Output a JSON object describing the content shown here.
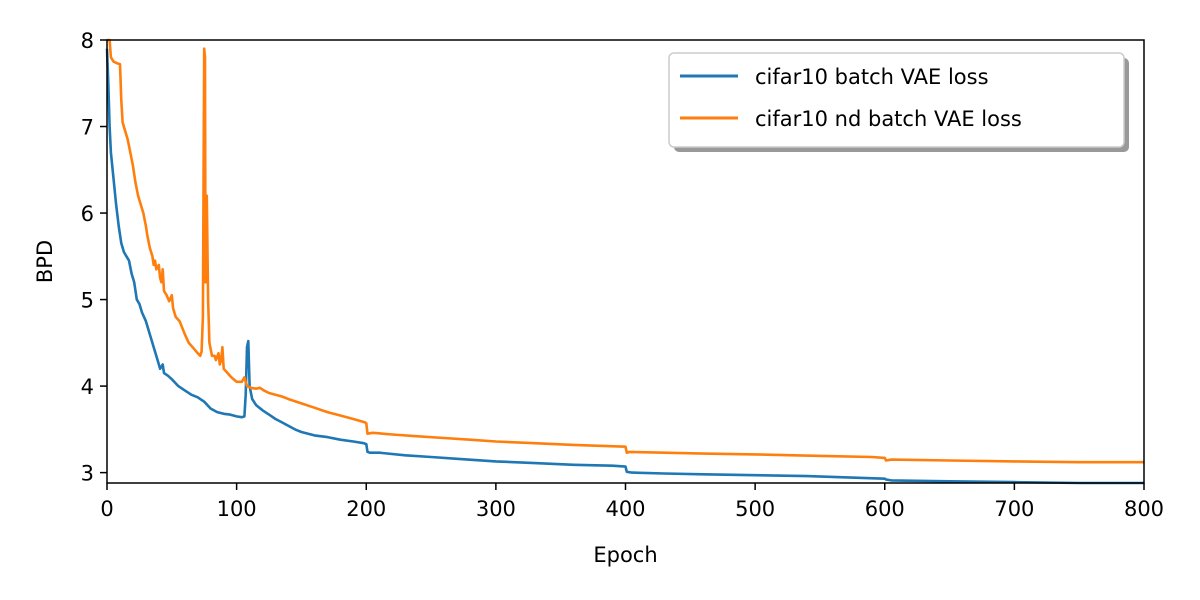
{
  "chart_data": {
    "type": "line",
    "xlabel": "Epoch",
    "ylabel": "BPD",
    "xlim": [
      0,
      800
    ],
    "ylim": [
      2.88,
      8.0
    ],
    "xticks": [
      0,
      100,
      200,
      300,
      400,
      500,
      600,
      700,
      800
    ],
    "yticks": [
      3,
      4,
      5,
      6,
      7,
      8
    ],
    "grid": false,
    "legend_position": "top-right",
    "series": [
      {
        "name": "cifar10 batch VAE loss",
        "color": "#1f77b4",
        "points": [
          [
            0,
            7.9
          ],
          [
            1,
            7.5
          ],
          [
            2,
            7.0
          ],
          [
            3,
            6.7
          ],
          [
            5,
            6.4
          ],
          [
            7,
            6.1
          ],
          [
            9,
            5.85
          ],
          [
            11,
            5.65
          ],
          [
            13,
            5.55
          ],
          [
            15,
            5.5
          ],
          [
            17,
            5.45
          ],
          [
            19,
            5.3
          ],
          [
            21,
            5.2
          ],
          [
            23,
            5.0
          ],
          [
            25,
            4.95
          ],
          [
            27,
            4.85
          ],
          [
            30,
            4.75
          ],
          [
            33,
            4.6
          ],
          [
            36,
            4.45
          ],
          [
            39,
            4.3
          ],
          [
            41,
            4.2
          ],
          [
            43,
            4.25
          ],
          [
            44,
            4.15
          ],
          [
            47,
            4.12
          ],
          [
            50,
            4.08
          ],
          [
            55,
            4.0
          ],
          [
            60,
            3.95
          ],
          [
            65,
            3.9
          ],
          [
            70,
            3.87
          ],
          [
            75,
            3.82
          ],
          [
            80,
            3.74
          ],
          [
            85,
            3.7
          ],
          [
            90,
            3.68
          ],
          [
            95,
            3.67
          ],
          [
            100,
            3.65
          ],
          [
            104,
            3.64
          ],
          [
            106,
            3.65
          ],
          [
            107,
            3.9
          ],
          [
            108,
            4.45
          ],
          [
            109,
            4.52
          ],
          [
            110,
            4.0
          ],
          [
            112,
            3.85
          ],
          [
            115,
            3.78
          ],
          [
            120,
            3.72
          ],
          [
            125,
            3.67
          ],
          [
            130,
            3.62
          ],
          [
            135,
            3.58
          ],
          [
            140,
            3.54
          ],
          [
            145,
            3.5
          ],
          [
            150,
            3.47
          ],
          [
            160,
            3.43
          ],
          [
            170,
            3.41
          ],
          [
            180,
            3.38
          ],
          [
            190,
            3.36
          ],
          [
            198,
            3.34
          ],
          [
            200,
            3.33
          ],
          [
            201,
            3.24
          ],
          [
            203,
            3.23
          ],
          [
            210,
            3.23
          ],
          [
            230,
            3.2
          ],
          [
            250,
            3.18
          ],
          [
            270,
            3.16
          ],
          [
            300,
            3.13
          ],
          [
            330,
            3.11
          ],
          [
            360,
            3.09
          ],
          [
            390,
            3.08
          ],
          [
            400,
            3.07
          ],
          [
            401,
            3.01
          ],
          [
            405,
            3.0
          ],
          [
            430,
            2.99
          ],
          [
            460,
            2.98
          ],
          [
            500,
            2.97
          ],
          [
            540,
            2.96
          ],
          [
            580,
            2.94
          ],
          [
            600,
            2.93
          ],
          [
            601,
            2.92
          ],
          [
            605,
            2.91
          ],
          [
            650,
            2.9
          ],
          [
            700,
            2.89
          ],
          [
            750,
            2.88
          ],
          [
            800,
            2.88
          ]
        ]
      },
      {
        "name": "cifar10 nd batch VAE loss",
        "color": "#ff7f0e",
        "points": [
          [
            0,
            8.0
          ],
          [
            2,
            8.0
          ],
          [
            3,
            7.8
          ],
          [
            5,
            7.75
          ],
          [
            8,
            7.73
          ],
          [
            10,
            7.72
          ],
          [
            11,
            7.3
          ],
          [
            12,
            7.05
          ],
          [
            14,
            6.95
          ],
          [
            16,
            6.85
          ],
          [
            18,
            6.7
          ],
          [
            20,
            6.55
          ],
          [
            22,
            6.35
          ],
          [
            24,
            6.2
          ],
          [
            26,
            6.1
          ],
          [
            28,
            6.0
          ],
          [
            30,
            5.85
          ],
          [
            31,
            5.75
          ],
          [
            33,
            5.6
          ],
          [
            35,
            5.5
          ],
          [
            36,
            5.4
          ],
          [
            37,
            5.45
          ],
          [
            38,
            5.35
          ],
          [
            40,
            5.4
          ],
          [
            41,
            5.25
          ],
          [
            42,
            5.2
          ],
          [
            43,
            5.35
          ],
          [
            44,
            5.1
          ],
          [
            46,
            5.05
          ],
          [
            48,
            4.98
          ],
          [
            50,
            5.05
          ],
          [
            51,
            4.9
          ],
          [
            53,
            4.8
          ],
          [
            56,
            4.75
          ],
          [
            60,
            4.6
          ],
          [
            63,
            4.5
          ],
          [
            66,
            4.45
          ],
          [
            70,
            4.38
          ],
          [
            72,
            4.35
          ],
          [
            73,
            4.4
          ],
          [
            74,
            4.8
          ],
          [
            74.5,
            6.5
          ],
          [
            75,
            7.9
          ],
          [
            75.6,
            7.8
          ],
          [
            76,
            5.2
          ],
          [
            76.5,
            6.1
          ],
          [
            77,
            6.2
          ],
          [
            78,
            5.0
          ],
          [
            79,
            4.5
          ],
          [
            81,
            4.35
          ],
          [
            83,
            4.35
          ],
          [
            84,
            4.3
          ],
          [
            86,
            4.38
          ],
          [
            87,
            4.25
          ],
          [
            88,
            4.3
          ],
          [
            89,
            4.45
          ],
          [
            90,
            4.2
          ],
          [
            93,
            4.15
          ],
          [
            96,
            4.1
          ],
          [
            100,
            4.05
          ],
          [
            104,
            4.05
          ],
          [
            106,
            4.1
          ],
          [
            108,
            4.0
          ],
          [
            111,
            3.98
          ],
          [
            115,
            3.97
          ],
          [
            118,
            3.98
          ],
          [
            121,
            3.95
          ],
          [
            125,
            3.92
          ],
          [
            130,
            3.9
          ],
          [
            135,
            3.88
          ],
          [
            140,
            3.85
          ],
          [
            150,
            3.8
          ],
          [
            160,
            3.75
          ],
          [
            170,
            3.7
          ],
          [
            180,
            3.66
          ],
          [
            190,
            3.62
          ],
          [
            199,
            3.58
          ],
          [
            200,
            3.57
          ],
          [
            201,
            3.45
          ],
          [
            205,
            3.46
          ],
          [
            220,
            3.44
          ],
          [
            240,
            3.42
          ],
          [
            260,
            3.4
          ],
          [
            280,
            3.38
          ],
          [
            300,
            3.36
          ],
          [
            330,
            3.34
          ],
          [
            360,
            3.32
          ],
          [
            380,
            3.31
          ],
          [
            400,
            3.3
          ],
          [
            401,
            3.23
          ],
          [
            403,
            3.24
          ],
          [
            430,
            3.23
          ],
          [
            460,
            3.22
          ],
          [
            500,
            3.21
          ],
          [
            530,
            3.2
          ],
          [
            560,
            3.19
          ],
          [
            590,
            3.18
          ],
          [
            600,
            3.17
          ],
          [
            601,
            3.14
          ],
          [
            605,
            3.15
          ],
          [
            650,
            3.14
          ],
          [
            700,
            3.13
          ],
          [
            750,
            3.12
          ],
          [
            800,
            3.12
          ]
        ]
      }
    ]
  }
}
